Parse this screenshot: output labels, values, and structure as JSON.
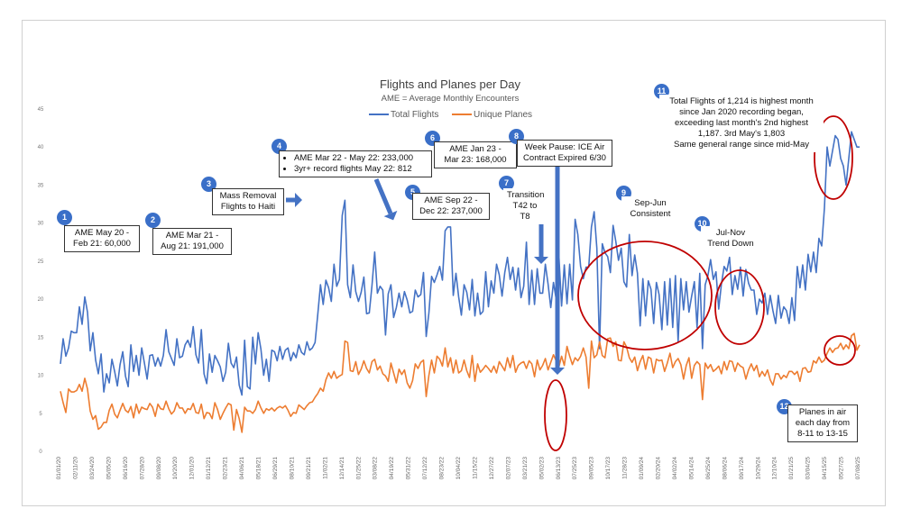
{
  "chart_data": {
    "type": "line",
    "title": "Flights and Planes per Day",
    "subtitle": "AME = Average Monthly Encounters",
    "ylim": [
      0,
      45
    ],
    "yticks": [
      0,
      5,
      10,
      15,
      20,
      25,
      30,
      35,
      40,
      45
    ],
    "grid": false,
    "legend_position": "top",
    "x_labels": [
      "01/01/20",
      "02/11/20",
      "03/24/20",
      "05/05/20",
      "06/16/20",
      "07/28/20",
      "09/08/20",
      "10/20/20",
      "12/01/20",
      "01/12/21",
      "02/23/21",
      "04/06/21",
      "05/18/21",
      "06/29/21",
      "08/10/21",
      "09/21/21",
      "11/02/21",
      "12/14/21",
      "01/25/22",
      "03/08/22",
      "04/19/22",
      "05/31/22",
      "07/12/22",
      "08/23/22",
      "10/04/22",
      "11/15/22",
      "12/27/22",
      "02/07/23",
      "03/21/23",
      "05/02/23",
      "06/13/23",
      "07/25/23",
      "09/05/23",
      "10/17/23",
      "11/28/23",
      "01/09/24",
      "02/20/24",
      "04/02/24",
      "05/14/24",
      "06/25/24",
      "08/06/24",
      "09/17/24",
      "10/29/24",
      "12/10/24",
      "01/21/25",
      "03/04/25",
      "04/15/25",
      "05/27/25",
      "07/08/25"
    ],
    "series": [
      {
        "name": "Total Flights",
        "color": "#4472c4",
        "values": [
          11.5,
          14.8,
          12.5,
          13.6,
          15.8,
          15.6,
          15.6,
          19.0,
          16.7,
          20.3,
          18.3,
          13.2,
          15.6,
          12.0,
          10.2,
          12.8,
          7.8,
          10.2,
          9.0,
          12.1,
          10.5,
          8.6,
          11.4,
          13.1,
          9.9,
          8.5,
          14.0,
          10.5,
          12.6,
          10.0,
          13.6,
          11.6,
          9.5,
          12.6,
          12.7,
          11.2,
          12.3,
          11.2,
          12.6,
          16.0,
          13.1,
          12.2,
          11.3,
          14.8,
          12.3,
          12.5,
          14.0,
          14.6,
          13.7,
          16.4,
          12.7,
          11.6,
          16.0,
          10.2,
          8.9,
          12.8,
          10.4,
          12.6,
          11.9,
          11.1,
          9.2,
          10.4,
          14.2,
          11.6,
          11.0,
          12.4,
          8.7,
          7.4,
          14.6,
          8.5,
          8.2,
          15.0,
          11.5,
          15.6,
          13.4,
          10.0,
          12.1,
          9.2,
          13.3,
          13.1,
          11.9,
          13.8,
          12.1,
          13.3,
          13.6,
          11.9,
          13.0,
          12.3,
          14.0,
          13.0,
          12.7,
          14.4,
          13.3,
          13.6,
          14.3,
          18.0,
          21.9,
          19.3,
          22.5,
          21.5,
          19.7,
          24.6,
          21.7,
          22.6,
          31.0,
          33.0,
          21.9,
          20.2,
          24.5,
          21.0,
          19.7,
          20.9,
          22.9,
          18.1,
          18.2,
          21.8,
          26.2,
          20.8,
          21.7,
          21.2,
          15.3,
          20.7,
          21.9,
          17.6,
          18.9,
          20.8,
          19.0,
          21.0,
          19.9,
          18.2,
          18.4,
          21.2,
          20.3,
          20.6,
          23.5,
          15.1,
          18.2,
          23.0,
          22.2,
          23.2,
          24.3,
          22.5,
          29.0,
          29.5,
          29.5,
          20.5,
          23.4,
          20.3,
          17.9,
          21.9,
          20.9,
          18.6,
          22.6,
          17.8,
          20.8,
          18.0,
          18.4,
          23.6,
          19.0,
          22.4,
          20.8,
          24.6,
          23.2,
          20.4,
          23.5,
          25.5,
          22.6,
          24.2,
          21.2,
          24.1,
          20.2,
          21.7,
          27.5,
          19.3,
          23.8,
          19.3,
          24.0,
          20.8,
          20.8,
          24.6,
          22.0,
          18.9,
          22.2,
          20.0,
          25.7,
          19.1,
          24.5,
          19.4,
          24.6,
          19.9,
          30.5,
          28.5,
          24.3,
          22.7,
          24.2,
          24.2,
          29.5,
          31.5,
          26.7,
          13.5,
          27.3,
          26.1,
          25.6,
          23.5,
          29.7,
          27.6,
          25.1,
          26.7,
          22.3,
          21.6,
          28.5,
          23.1,
          25.8,
          23.4,
          16.5,
          22.7,
          17.8,
          22.4,
          21.3,
          16.8,
          22.2,
          20.6,
          16.0,
          22.3,
          16.6,
          22.7,
          16.3,
          23.1,
          14.4,
          22.7,
          18.6,
          22.3,
          18.3,
          20.4,
          22.3,
          16.3,
          23.4,
          13.5,
          21.9,
          23.1,
          25.2,
          22.6,
          23.6,
          18.7,
          22.0,
          24.3,
          23.7,
          25.5,
          20.6,
          23.1,
          21.3,
          24.2,
          20.4,
          23.9,
          22.1,
          21.2,
          21.2,
          18.0,
          20.0,
          19.5,
          20.8,
          18.0,
          20.5,
          18.5,
          16.8,
          20.5,
          17.5,
          19.0,
          18.5,
          16.8,
          20.2,
          17.2,
          24.3,
          21.5,
          24.5,
          21.2,
          25.9,
          23.6,
          26.2,
          23.5,
          28.0,
          27.0,
          32.0,
          40.0,
          37.5,
          39.5,
          41.5,
          41.0,
          38.5,
          37.5,
          35.0,
          38.5,
          42.0,
          41.0,
          40.0,
          40.0
        ]
      },
      {
        "name": "Unique Planes",
        "color": "#ed7d31",
        "values": [
          7.9,
          6.4,
          5.1,
          8.2,
          7.8,
          7.8,
          8.0,
          8.8,
          7.9,
          9.6,
          8.2,
          5.3,
          4.2,
          4.7,
          2.9,
          3.2,
          3.8,
          3.8,
          5.4,
          6.2,
          4.9,
          4.4,
          5.4,
          6.3,
          5.4,
          5.1,
          5.9,
          4.4,
          6.2,
          5.0,
          5.8,
          5.6,
          5.5,
          6.3,
          5.8,
          4.6,
          6.2,
          5.6,
          5.5,
          6.6,
          5.6,
          4.9,
          5.3,
          6.4,
          5.7,
          5.7,
          5.0,
          5.6,
          5.5,
          6.3,
          5.1,
          5.0,
          6.2,
          4.3,
          5.1,
          5.0,
          4.3,
          6.4,
          5.5,
          4.2,
          5.0,
          5.7,
          6.3,
          6.1,
          2.8,
          5.5,
          4.3,
          2.5,
          5.8,
          5.3,
          5.3,
          5.0,
          5.5,
          6.6,
          5.7,
          5.0,
          5.6,
          5.4,
          5.7,
          5.3,
          5.7,
          5.9,
          5.7,
          6.0,
          5.4,
          4.6,
          5.1,
          5.0,
          6.1,
          5.8,
          5.5,
          6.0,
          6.4,
          6.5,
          7.1,
          7.6,
          8.3,
          7.9,
          9.4,
          10.3,
          9.6,
          10.5,
          9.6,
          9.9,
          10.1,
          14.5,
          14.3,
          10.6,
          10.5,
          11.8,
          10.1,
          10.8,
          11.9,
          10.9,
          10.3,
          11.8,
          12.1,
          10.7,
          11.2,
          10.2,
          9.9,
          9.2,
          11.6,
          10.3,
          9.0,
          10.8,
          10.1,
          10.7,
          9.0,
          8.3,
          9.3,
          11.5,
          10.9,
          11.7,
          12.0,
          7.2,
          10.0,
          12.0,
          10.3,
          12.5,
          12.1,
          11.2,
          13.6,
          11.1,
          12.3,
          10.3,
          12.0,
          10.3,
          10.6,
          12.0,
          10.6,
          9.7,
          12.6,
          9.2,
          11.5,
          10.4,
          10.8,
          11.3,
          10.9,
          10.4,
          11.2,
          10.3,
          11.8,
          11.2,
          10.6,
          12.3,
          11.0,
          12.6,
          10.4,
          11.3,
          11.6,
          11.8,
          10.9,
          11.9,
          11.5,
          9.8,
          12.0,
          10.7,
          11.3,
          12.2,
          10.7,
          11.7,
          12.7,
          11.9,
          11.1,
          12.5,
          11.3,
          13.8,
          12.5,
          11.4,
          12.3,
          11.9,
          12.5,
          13.6,
          12.4,
          8.3,
          14.5,
          12.3,
          12.7,
          14.4,
          12.6,
          12.3,
          14.8,
          14.9,
          13.8,
          14.4,
          12.0,
          11.9,
          14.4,
          13.7,
          12.3,
          11.7,
          12.4,
          10.6,
          11.8,
          12.6,
          10.8,
          12.4,
          12.2,
          10.3,
          12.1,
          11.9,
          12.0,
          10.5,
          11.6,
          12.9,
          11.0,
          11.8,
          12.2,
          11.4,
          9.5,
          11.3,
          12.3,
          9.6,
          11.3,
          11.8,
          11.4,
          6.8,
          11.6,
          10.9,
          11.4,
          10.5,
          10.8,
          11.2,
          10.2,
          11.8,
          10.7,
          11.9,
          11.8,
          10.5,
          11.6,
          11.2,
          11.0,
          9.5,
          10.7,
          11.5,
          10.6,
          11.3,
          9.8,
          10.5,
          9.9,
          10.7,
          9.4,
          8.7,
          10.2,
          10.2,
          9.5,
          10.0,
          9.7,
          10.5,
          10.5,
          10.1,
          10.5,
          9.2,
          10.9,
          11.0,
          10.4,
          10.5,
          11.9,
          11.6,
          12.4,
          11.7,
          12.0,
          12.9,
          13.6,
          13.0,
          13.5,
          13.6,
          14.2,
          13.4,
          14.0,
          13.5,
          15.2,
          15.5,
          13.3,
          14.0
        ]
      }
    ]
  },
  "annotations": [
    {
      "num": "1",
      "lines": [
        "AME May 20 -",
        "Feb 21: 60,000"
      ]
    },
    {
      "num": "2",
      "lines": [
        "AME Mar 21 -",
        "Aug 21: 191,000"
      ]
    },
    {
      "num": "3",
      "lines": [
        "Mass Removal",
        "Flights to Haiti"
      ]
    },
    {
      "num": "4",
      "bullets": [
        "AME Mar 22 - May 22: 233,000",
        "3yr+ record flights May 22: 812"
      ]
    },
    {
      "num": "5",
      "lines": [
        "AME Sep 22 -",
        "Dec 22: 237,000"
      ]
    },
    {
      "num": "6",
      "lines": [
        "AME Jan 23 -",
        "Mar 23: 168,000"
      ]
    },
    {
      "num": "7",
      "lines": [
        "Transition",
        "T42 to T8"
      ]
    },
    {
      "num": "8",
      "lines": [
        "Week Pause: ICE Air",
        "Contract Expired 6/30"
      ]
    },
    {
      "num": "9",
      "lines": [
        "Sep-Jun",
        "Consistent"
      ]
    },
    {
      "num": "10",
      "lines": [
        "Jul-Nov",
        "Trend Down"
      ]
    },
    {
      "num": "11",
      "lines": [
        "Total Flights of 1,214 is highest month",
        "since Jan 2020 recording began,",
        "exceeding last month's 2nd highest",
        "1,187.  3rd May's 1,803",
        "Same general range since mid-May"
      ]
    },
    {
      "num": "12",
      "lines": [
        "Planes in air",
        "each day from",
        "8-11 to 13-15"
      ]
    }
  ],
  "colors": {
    "highlight_circle": "#c00000",
    "arrow": "#4472c4",
    "badge": "#3a6fc8"
  }
}
